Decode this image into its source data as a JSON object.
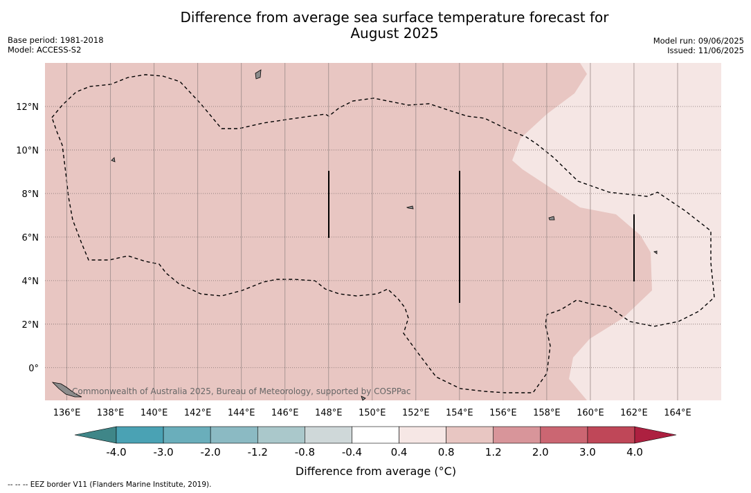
{
  "header": {
    "title_line1": "Difference from average sea surface temperature forecast for",
    "title_line2": "August 2025",
    "base_period": "Base period: 1981-2018",
    "model": "Model: ACCESS-S2",
    "model_run": "Model run: 09/06/2025",
    "issued": "Issued: 11/06/2025"
  },
  "map": {
    "lon_range_east": [
      135.0,
      166.0
    ],
    "lat_range": [
      -1.5,
      14.0
    ],
    "lon_ticks": [
      "136°E",
      "138°E",
      "140°E",
      "142°E",
      "144°E",
      "146°E",
      "148°E",
      "150°E",
      "152°E",
      "154°E",
      "156°E",
      "158°E",
      "160°E",
      "162°E",
      "164°E"
    ],
    "lat_ticks": [
      "12°N",
      "10°N",
      "8°N",
      "6°N",
      "4°N",
      "2°N",
      "0°"
    ],
    "watermark": "Commonwealth of Australia 2025, Bureau of Meteorology, supported by COSPPac",
    "region_colors": {
      "main": "#e8c6c2",
      "light": "#f5e6e4",
      "land": "#8c8c8c"
    }
  },
  "colorbar": {
    "label": "Difference from average (°C)",
    "tick_labels": [
      "-4.0",
      "-3.0",
      "-2.0",
      "-1.2",
      "-0.8",
      "-0.4",
      "0.4",
      "0.8",
      "1.2",
      "2.0",
      "3.0",
      "4.0"
    ],
    "colors": [
      "#4aa2b4",
      "#6aaebb",
      "#8bbac3",
      "#aac8cb",
      "#cfd8d9",
      "#ffffff",
      "#f6e7e5",
      "#e8c6c2",
      "#d8959a",
      "#cb6672",
      "#bf4758"
    ],
    "low_extend_color": "#3f8688",
    "high_extend_color": "#ad2040"
  },
  "footnote": "--  --  -- EEZ border V11 (Flanders Marine Institute, 2019)."
}
